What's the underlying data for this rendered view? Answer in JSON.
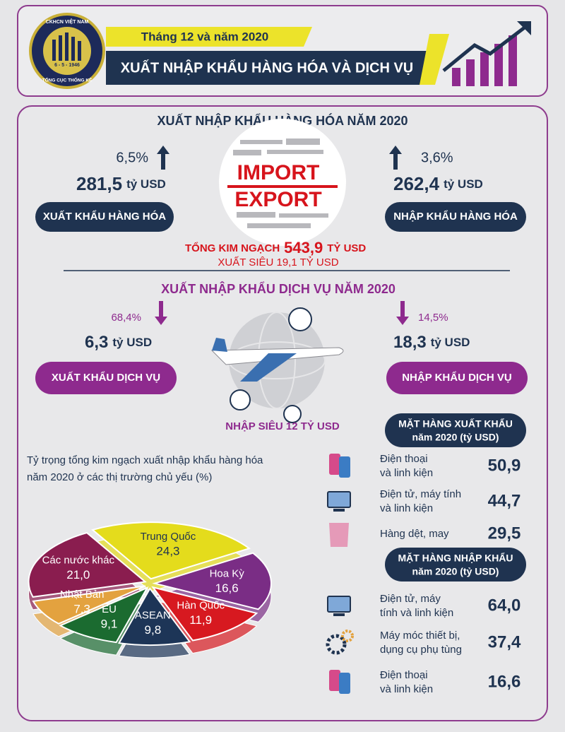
{
  "header": {
    "logo_top": "CKHCN VIỆT NAM",
    "logo_date": "6 - 5 - 1946",
    "logo_bottom": "TỔNG CỤC THỐNG KÊ",
    "date": "Tháng 12 và năm 2020",
    "title": "XUẤT NHẬP KHẨU HÀNG HÓA VÀ DỊCH VỤ"
  },
  "goods": {
    "title": "XUẤT NHẬP KHẨU HÀNG HÓA NĂM 2020",
    "export": {
      "growth": "6,5%",
      "amount": "281,5",
      "unit": "tỷ USD",
      "label": "XUẤT KHẨU HÀNG HÓA"
    },
    "import": {
      "growth": "3,6%",
      "amount": "262,4",
      "unit": "tỷ USD",
      "label": "NHẬP KHẨU HÀNG HÓA"
    },
    "image_words": [
      "IMPORT",
      "EXPORT"
    ],
    "total_label": "TỔNG KIM NGẠCH",
    "total_amount": "543,9",
    "total_unit": "TỶ USD",
    "surplus": "XUẤT SIÊU 19,1 TỶ USD"
  },
  "services": {
    "title": "XUẤT NHẬP KHẨU DỊCH VỤ NĂM 2020",
    "export": {
      "growth": "68,4%",
      "amount": "6,3",
      "unit": "tỷ USD",
      "label": "XUẤT KHẨU DỊCH VỤ"
    },
    "import": {
      "growth": "14,5%",
      "amount": "18,3",
      "unit": "tỷ USD",
      "label": "NHẬP KHẨU DỊCH VỤ"
    },
    "deficit": "NHẬP SIÊU 12 TỶ USD"
  },
  "market_share": {
    "type": "pie",
    "title": [
      "Tỷ trọng tổng kim ngạch xuất nhập khẩu hàng hóa",
      "năm 2020 ở các thị trường chủ yếu (%)"
    ],
    "categories": [
      "Trung Quốc",
      "Hoa Kỳ",
      "Hàn Quốc",
      "ASEAN",
      "EU",
      "Nhật Bản",
      "Các nước khác"
    ],
    "values": [
      24.3,
      16.6,
      11.9,
      9.8,
      9.1,
      7.3,
      21.0
    ],
    "value_labels": [
      "24,3",
      "16,6",
      "11,9",
      "9,8",
      "9,1",
      "7,3",
      "21,0"
    ],
    "colors": [
      "#e4dc1c",
      "#7a2d85",
      "#d71920",
      "#1d3557",
      "#1b6b30",
      "#e3a23f",
      "#8a1d4f"
    ]
  },
  "top_exports": {
    "title": [
      "MẶT HÀNG XUẤT KHẨU",
      "năm 2020 (tỷ USD)"
    ],
    "rows": [
      {
        "item": [
          "Điện thoại",
          "và linh kiện"
        ],
        "value": "50,9"
      },
      {
        "item": [
          "Điện tử, máy tính",
          "và linh kiện"
        ],
        "value": "44,7"
      },
      {
        "item": [
          "Hàng dệt, may"
        ],
        "value": "29,5"
      }
    ]
  },
  "top_imports": {
    "title": [
      "MẶT HÀNG NHẬP KHẨU",
      "năm 2020 (tỷ USD)"
    ],
    "rows": [
      {
        "item": [
          "Điện tử, máy",
          "tính và linh kiện"
        ],
        "value": "64,0"
      },
      {
        "item": [
          "Máy móc thiết bị,",
          "dụng cụ phụ tùng"
        ],
        "value": "37,4"
      },
      {
        "item": [
          "Điện thoại",
          "và linh kiện"
        ],
        "value": "16,6"
      }
    ]
  }
}
